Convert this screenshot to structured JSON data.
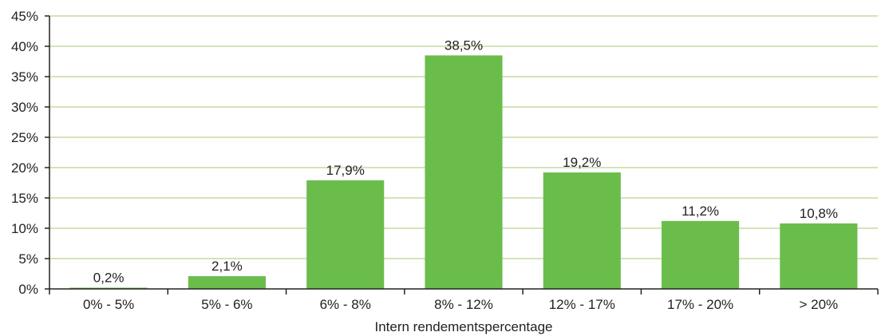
{
  "chart_data": {
    "type": "bar",
    "categories": [
      "0% - 5%",
      "5% - 6%",
      "6% - 8%",
      "8% - 12%",
      "12% - 17%",
      "17% - 20%",
      "> 20%"
    ],
    "values": [
      0.2,
      2.1,
      17.9,
      38.5,
      19.2,
      11.2,
      10.8
    ],
    "data_labels": [
      "0,2%",
      "2,1%",
      "17,9%",
      "38,5%",
      "19,2%",
      "11,2%",
      "10,8%"
    ],
    "title": "",
    "xlabel": "Intern rendementspercentage",
    "ylabel": "",
    "ylim": [
      0,
      45
    ],
    "yticks": [
      0,
      5,
      10,
      15,
      20,
      25,
      30,
      35,
      40,
      45
    ],
    "ytick_labels": [
      "0%",
      "5%",
      "10%",
      "15%",
      "20%",
      "25%",
      "30%",
      "35%",
      "40%",
      "45%"
    ],
    "grid": true,
    "legend": "none",
    "colors": {
      "bar": "#6bbd4b",
      "grid": "#c6dca0",
      "axis": "#222222"
    }
  }
}
